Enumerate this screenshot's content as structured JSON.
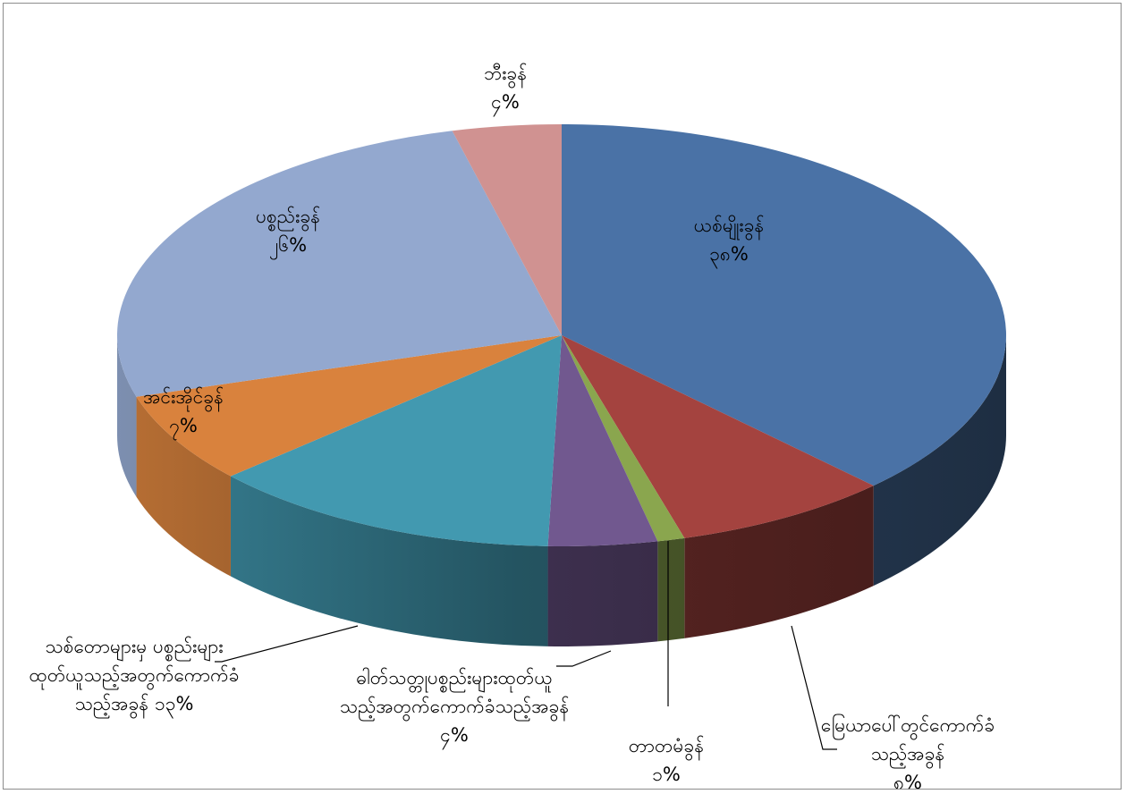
{
  "chart_data": {
    "type": "pie3d",
    "categories": [
      "ယစ်မျိုးခွန်",
      "မြေယာပေါ်တွင်ကောက်ခံသည့်အခွန်",
      "တာတမံခွန်",
      "ဓါတ်သတ္တုပစ္စည်းများထုတ်ယူသည့်အတွက်ကောက်ခံသည့်အခွန်",
      "သစ်တောများမှ ပစ္စည်းများထုတ်ယူသည့်အတွက်ကောက်ခံသည့်အခွန်",
      "အင်းအိုင်ခွန်",
      "ပစ္စည်းခွန်",
      "ဘီးခွန်"
    ],
    "values": [
      38,
      8,
      1,
      4,
      13,
      7,
      26,
      4
    ],
    "value_labels": [
      "၃၈%",
      "၈%",
      "၁%",
      "၄%",
      "၁၃%",
      "၇%",
      "၂၆%",
      "၄%"
    ],
    "colors": [
      "#4a72a6",
      "#a4433f",
      "#8aa64e",
      "#71588f",
      "#4299b0",
      "#d9823d",
      "#93a8cf",
      "#d09291"
    ]
  }
}
